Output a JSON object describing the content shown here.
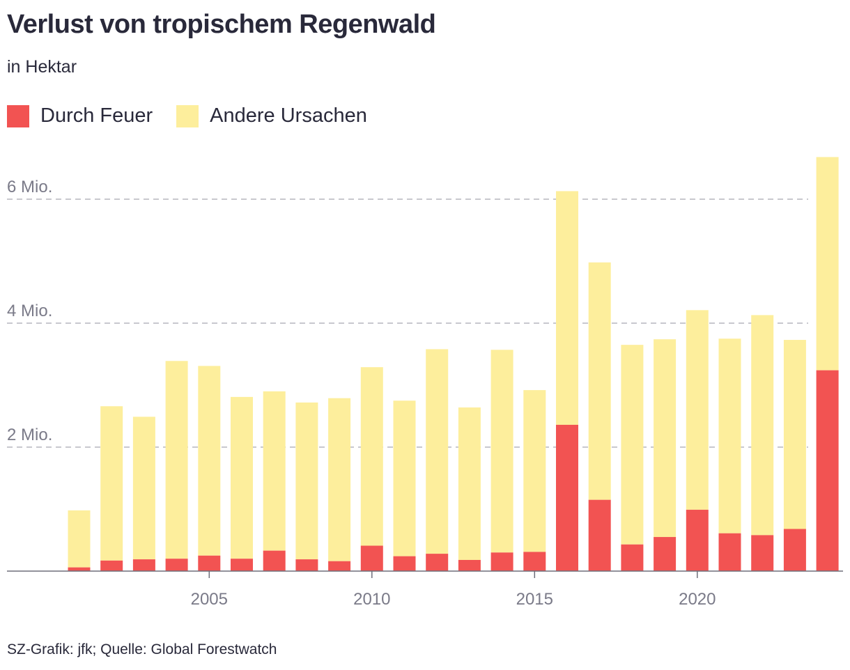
{
  "title": "Verlust von tropischem Regenwald",
  "subtitle": "in Hektar",
  "footer": "SZ-Grafik: jfk; Quelle: Global Forestwatch",
  "colors": {
    "fire": "#f25352",
    "other": "#fdee9c",
    "text": "#29293a",
    "axis": "#7a7a88"
  },
  "chart_data": {
    "type": "bar",
    "stacked": true,
    "x": [
      2001,
      2002,
      2003,
      2004,
      2005,
      2006,
      2007,
      2008,
      2009,
      2010,
      2011,
      2012,
      2013,
      2014,
      2015,
      2016,
      2017,
      2018,
      2019,
      2020,
      2021,
      2022,
      2023,
      2024
    ],
    "series": [
      {
        "name": "Durch Feuer",
        "color": "#f25352",
        "values": [
          0.06,
          0.17,
          0.19,
          0.2,
          0.25,
          0.2,
          0.33,
          0.19,
          0.16,
          0.41,
          0.24,
          0.28,
          0.18,
          0.3,
          0.31,
          2.36,
          1.15,
          0.43,
          0.55,
          0.99,
          0.61,
          0.58,
          0.68,
          3.24
        ]
      },
      {
        "name": "Andere Ursachen",
        "color": "#fdee9c",
        "values": [
          0.92,
          2.49,
          2.3,
          3.19,
          3.06,
          2.61,
          2.57,
          2.53,
          2.63,
          2.88,
          2.51,
          3.3,
          2.46,
          3.27,
          2.61,
          3.77,
          3.83,
          3.22,
          3.19,
          3.22,
          3.14,
          3.55,
          3.05,
          3.44
        ]
      }
    ],
    "yticks": [
      {
        "value": 2,
        "label": "2 Mio."
      },
      {
        "value": 4,
        "label": "4 Mio."
      },
      {
        "value": 6,
        "label": "6 Mio."
      }
    ],
    "xticks": [
      2005,
      2010,
      2015,
      2020
    ],
    "ylim": [
      0,
      6.8
    ],
    "yunit": "Mio. Hektar",
    "legend": [
      "Durch Feuer",
      "Andere Ursachen"
    ],
    "grid": true
  }
}
